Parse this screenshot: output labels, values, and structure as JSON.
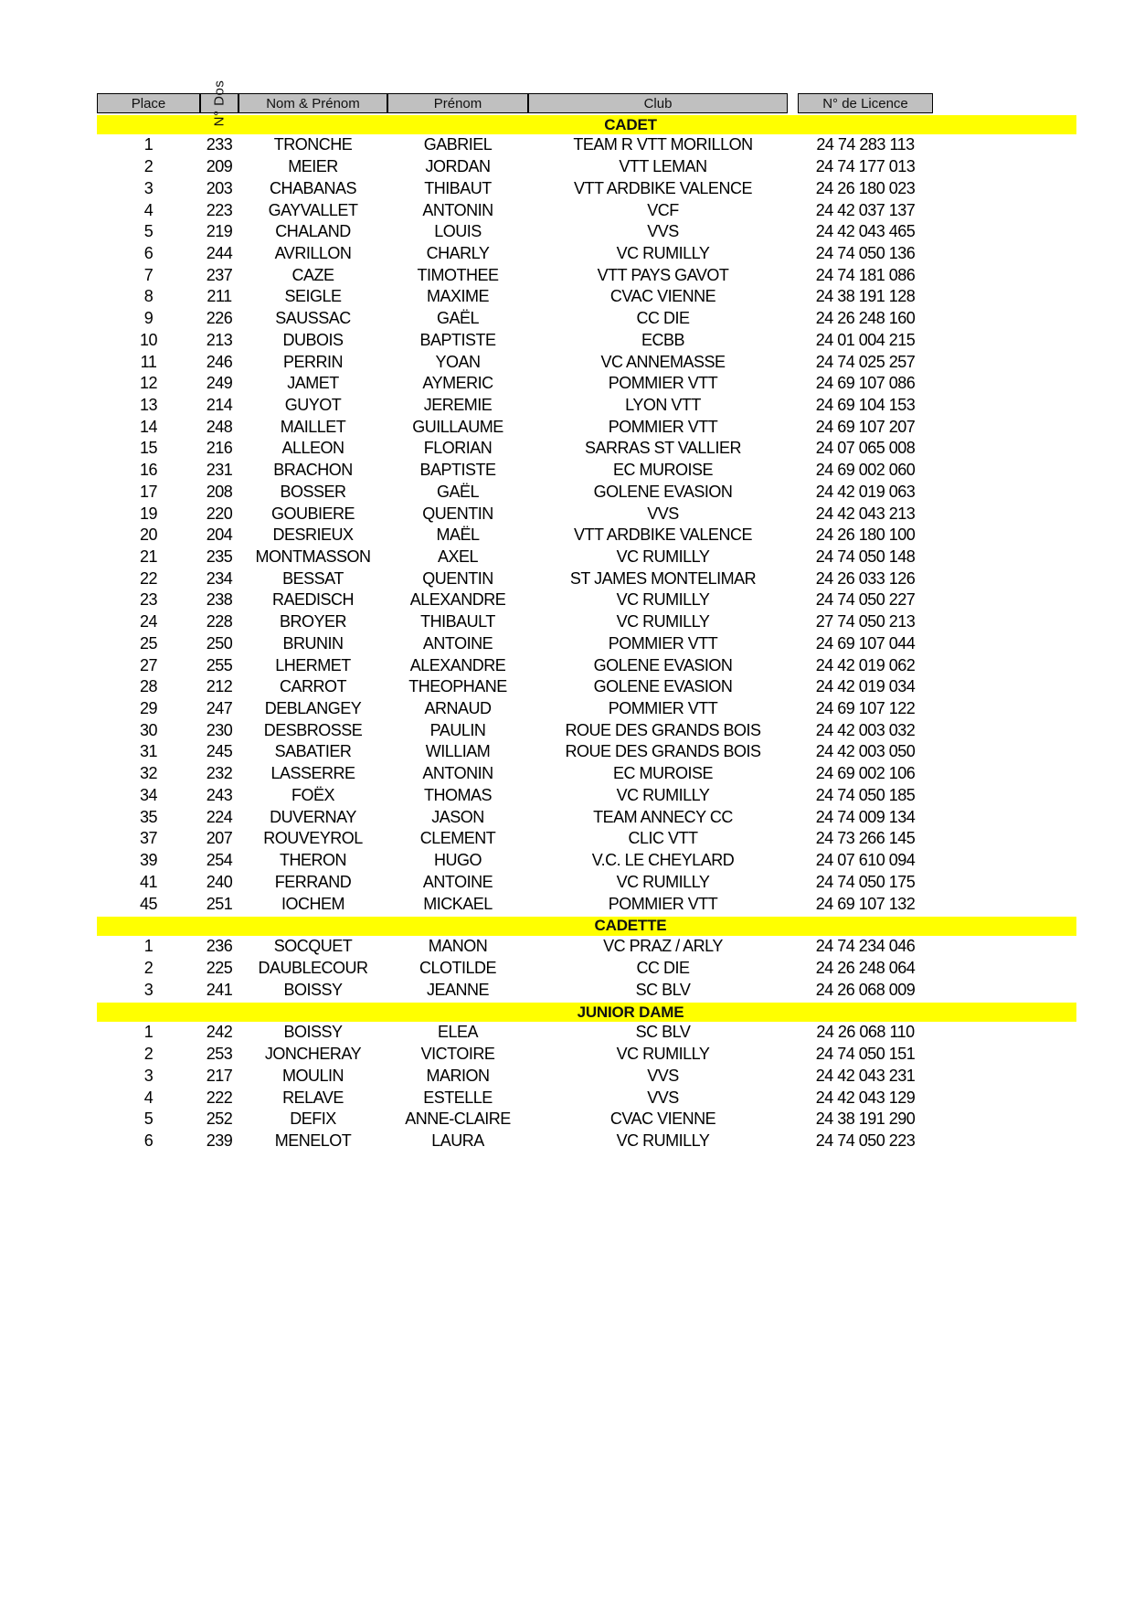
{
  "table": {
    "headers": [
      "Place",
      "N° Dos",
      "Nom & Prénom",
      "Prénom",
      "Club",
      "N° de Licence"
    ]
  },
  "sections": [
    {
      "title": "CADET",
      "rows": [
        [
          "1",
          "233",
          "TRONCHE",
          "GABRIEL",
          "TEAM R VTT MORILLON",
          "24 74 283 113"
        ],
        [
          "2",
          "209",
          "MEIER",
          "JORDAN",
          "VTT LEMAN",
          "24 74 177 013"
        ],
        [
          "3",
          "203",
          "CHABANAS",
          "THIBAUT",
          "VTT ARDBIKE VALENCE",
          "24 26 180 023"
        ],
        [
          "4",
          "223",
          "GAYVALLET",
          "ANTONIN",
          "VCF",
          "24 42 037 137"
        ],
        [
          "5",
          "219",
          "CHALAND",
          "LOUIS",
          "VVS",
          "24 42 043 465"
        ],
        [
          "6",
          "244",
          "AVRILLON",
          "CHARLY",
          "VC RUMILLY",
          "24 74 050 136"
        ],
        [
          "7",
          "237",
          "CAZE",
          "TIMOTHEE",
          "VTT PAYS GAVOT",
          "24 74 181 086"
        ],
        [
          "8",
          "211",
          "SEIGLE",
          "MAXIME",
          "CVAC VIENNE",
          "24 38 191 128"
        ],
        [
          "9",
          "226",
          "SAUSSAC",
          "GAËL",
          "CC DIE",
          "24 26 248 160"
        ],
        [
          "10",
          "213",
          "DUBOIS",
          "BAPTISTE",
          "ECBB",
          "24 01 004 215"
        ],
        [
          "11",
          "246",
          "PERRIN",
          "YOAN",
          "VC ANNEMASSE",
          "24 74 025 257"
        ],
        [
          "12",
          "249",
          "JAMET",
          "AYMERIC",
          "POMMIER VTT",
          "24 69 107 086"
        ],
        [
          "13",
          "214",
          "GUYOT",
          "JEREMIE",
          "LYON VTT",
          "24 69 104 153"
        ],
        [
          "14",
          "248",
          "MAILLET",
          "GUILLAUME",
          "POMMIER VTT",
          "24 69 107 207"
        ],
        [
          "15",
          "216",
          "ALLEON",
          "FLORIAN",
          "SARRAS ST VALLIER",
          "24 07 065 008"
        ],
        [
          "16",
          "231",
          "BRACHON",
          "BAPTISTE",
          "EC MUROISE",
          "24 69 002 060"
        ],
        [
          "17",
          "208",
          "BOSSER",
          "GAËL",
          "GOLENE EVASION",
          "24 42 019 063"
        ],
        [
          "19",
          "220",
          "GOUBIERE",
          "QUENTIN",
          "VVS",
          "24 42 043 213"
        ],
        [
          "20",
          "204",
          "DESRIEUX",
          "MAËL",
          "VTT ARDBIKE VALENCE",
          "24 26 180 100"
        ],
        [
          "21",
          "235",
          "MONTMASSON",
          "AXEL",
          "VC RUMILLY",
          "24 74 050 148"
        ],
        [
          "22",
          "234",
          "BESSAT",
          "QUENTIN",
          "ST JAMES MONTELIMAR",
          "24 26 033 126"
        ],
        [
          "23",
          "238",
          "RAEDISCH",
          "ALEXANDRE",
          "VC RUMILLY",
          "24 74 050 227"
        ],
        [
          "24",
          "228",
          "BROYER",
          "THIBAULT",
          "VC RUMILLY",
          "27 74 050 213"
        ],
        [
          "25",
          "250",
          "BRUNIN",
          "ANTOINE",
          "POMMIER VTT",
          "24 69 107 044"
        ],
        [
          "27",
          "255",
          "LHERMET",
          "ALEXANDRE",
          "GOLENE EVASION",
          "24 42 019 062"
        ],
        [
          "28",
          "212",
          "CARROT",
          "THEOPHANE",
          "GOLENE EVASION",
          "24 42 019 034"
        ],
        [
          "29",
          "247",
          "DEBLANGEY",
          "ARNAUD",
          "POMMIER VTT",
          "24 69 107 122"
        ],
        [
          "30",
          "230",
          "DESBROSSE",
          "PAULIN",
          "ROUE DES GRANDS BOIS",
          "24 42 003 032"
        ],
        [
          "31",
          "245",
          "SABATIER",
          "WILLIAM",
          "ROUE DES GRANDS BOIS",
          "24 42 003 050"
        ],
        [
          "32",
          "232",
          "LASSERRE",
          "ANTONIN",
          "EC MUROISE",
          "24 69 002 106"
        ],
        [
          "34",
          "243",
          "FOËX",
          "THOMAS",
          "VC RUMILLY",
          "24 74 050 185"
        ],
        [
          "35",
          "224",
          "DUVERNAY",
          "JASON",
          "TEAM ANNECY CC",
          "24 74 009 134"
        ],
        [
          "37",
          "207",
          "ROUVEYROL",
          "CLEMENT",
          "CLIC VTT",
          "24 73 266 145"
        ],
        [
          "39",
          "254",
          "THERON",
          "HUGO",
          "V.C. LE CHEYLARD",
          "24 07 610 094"
        ],
        [
          "41",
          "240",
          "FERRAND",
          "ANTOINE",
          "VC RUMILLY",
          "24 74 050 175"
        ],
        [
          "45",
          "251",
          "IOCHEM",
          "MICKAEL",
          "POMMIER VTT",
          "24 69 107 132"
        ]
      ]
    },
    {
      "title": "CADETTE",
      "rows": [
        [
          "1",
          "236",
          "SOCQUET",
          "MANON",
          "VC PRAZ / ARLY",
          "24 74 234 046"
        ],
        [
          "2",
          "225",
          "DAUBLECOUR",
          "CLOTILDE",
          "CC DIE",
          "24 26 248 064"
        ],
        [
          "3",
          "241",
          "BOISSY",
          "JEANNE",
          "SC BLV",
          "24 26 068 009"
        ]
      ]
    },
    {
      "title": "JUNIOR DAME",
      "rows": [
        [
          "1",
          "242",
          "BOISSY",
          "ELEA",
          "SC BLV",
          "24 26 068 110"
        ],
        [
          "2",
          "253",
          "JONCHERAY",
          "VICTOIRE",
          "VC RUMILLY",
          "24 74 050 151"
        ],
        [
          "3",
          "217",
          "MOULIN",
          "MARION",
          "VVS",
          "24 42 043 231"
        ],
        [
          "4",
          "222",
          "RELAVE",
          "ESTELLE",
          "VVS",
          "24 42 043 129"
        ],
        [
          "5",
          "252",
          "DEFIX",
          "ANNE-CLAIRE",
          "CVAC VIENNE",
          "24 38 191 290"
        ],
        [
          "6",
          "239",
          "MENELOT",
          "LAURA",
          "VC RUMILLY",
          "24 74 050 223"
        ]
      ]
    }
  ],
  "colors": {
    "section_bar": "#ffff00",
    "header_bg": "#c0c0c0",
    "text": "#000000"
  }
}
